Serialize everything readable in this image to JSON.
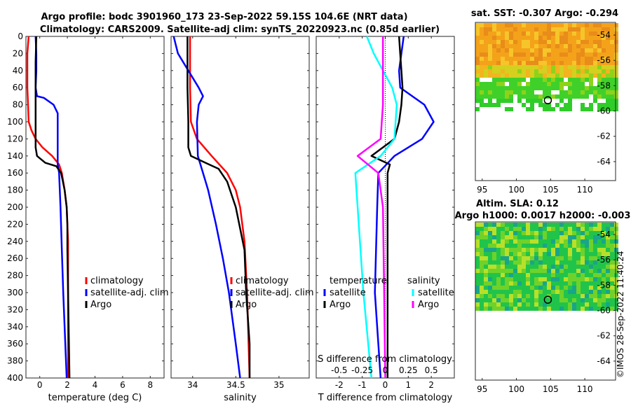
{
  "title": {
    "line1": "Argo profile: bodc 3901960_173 23-Sep-2022 59.15S 104.6E (NRT data)",
    "line2": "Climatology: CARS2009. Satellite-adj clim: synTS_20220923.nc (0.85d earlier)"
  },
  "colors": {
    "climatology": "#ff0000",
    "satellite": "#0000ff",
    "argo": "#000000",
    "salinity_sat": "#00ffff",
    "salinity_argo": "#ff00ff"
  },
  "credit": "©IMOS 28-Sep-2022 11:40:24",
  "chart_data": [
    {
      "type": "line",
      "id": "temperature",
      "xlabel": "temperature (deg C)",
      "xlim": [
        -1,
        9
      ],
      "xticks": [
        0,
        2,
        4,
        6,
        8
      ],
      "ylim": [
        400,
        0
      ],
      "yticks": [
        0,
        20,
        40,
        60,
        80,
        100,
        120,
        140,
        160,
        180,
        200,
        220,
        240,
        260,
        280,
        300,
        320,
        340,
        360,
        380,
        400
      ],
      "legend": [
        "climatology",
        "satellite-adj. clim",
        "Argo"
      ],
      "series": [
        {
          "name": "climatology",
          "color": "#ff0000",
          "depth": [
            0,
            20,
            60,
            80,
            100,
            110,
            120,
            130,
            140,
            150,
            160,
            180,
            200,
            240,
            300,
            400
          ],
          "values": [
            -0.8,
            -0.9,
            -0.9,
            -0.85,
            -0.8,
            -0.6,
            -0.3,
            0.2,
            0.9,
            1.4,
            1.6,
            1.8,
            1.95,
            2.05,
            2.05,
            2.05
          ]
        },
        {
          "name": "satellite-adj. clim",
          "color": "#0000ff",
          "depth": [
            0,
            20,
            40,
            60,
            70,
            72,
            80,
            90,
            150,
            160,
            200,
            250,
            300,
            400
          ],
          "values": [
            -0.3,
            -0.25,
            -0.25,
            -0.3,
            -0.2,
            0.3,
            1.0,
            1.3,
            1.3,
            1.4,
            1.5,
            1.6,
            1.7,
            1.95
          ]
        },
        {
          "name": "Argo",
          "color": "#000000",
          "depth": [
            0,
            30,
            60,
            100,
            130,
            140,
            148,
            152,
            160,
            180,
            200,
            220,
            250,
            300,
            350,
            400
          ],
          "values": [
            -0.25,
            -0.3,
            -0.3,
            -0.3,
            -0.3,
            -0.2,
            0.4,
            1.2,
            1.55,
            1.8,
            1.95,
            2.0,
            2.0,
            2.05,
            2.1,
            2.15
          ]
        }
      ]
    },
    {
      "type": "line",
      "id": "salinity",
      "xlabel": "salinity",
      "xlim": [
        33.75,
        35.35
      ],
      "xticks": [
        34,
        34.5,
        35
      ],
      "ylim": [
        400,
        0
      ],
      "legend": [
        "climatology",
        "satellite-adj. clim",
        "Argo"
      ],
      "series": [
        {
          "name": "climatology",
          "color": "#ff0000",
          "depth": [
            0,
            60,
            100,
            120,
            140,
            160,
            180,
            200,
            240,
            300,
            400
          ],
          "values": [
            33.97,
            33.97,
            33.98,
            34.05,
            34.22,
            34.4,
            34.5,
            34.55,
            34.6,
            34.63,
            34.66
          ]
        },
        {
          "name": "satellite-adj. clim",
          "color": "#0000ff",
          "depth": [
            0,
            20,
            40,
            60,
            70,
            80,
            100,
            140,
            160,
            180,
            220,
            260,
            300,
            360,
            400
          ],
          "values": [
            33.78,
            33.83,
            33.95,
            34.07,
            34.12,
            34.07,
            34.05,
            34.06,
            34.12,
            34.18,
            34.27,
            34.35,
            34.42,
            34.5,
            34.55
          ]
        },
        {
          "name": "Argo",
          "color": "#000000",
          "depth": [
            0,
            60,
            100,
            130,
            140,
            148,
            155,
            170,
            200,
            250,
            300,
            360,
            400
          ],
          "values": [
            33.94,
            33.94,
            33.95,
            33.95,
            33.98,
            34.15,
            34.3,
            34.4,
            34.5,
            34.6,
            34.62,
            34.66,
            34.66
          ]
        }
      ]
    },
    {
      "type": "line",
      "id": "difference",
      "xlabel": "T difference from climatology",
      "xlabel_top": "S difference from climatology",
      "xlim": [
        -3,
        3
      ],
      "xticks": [
        -2,
        -1,
        0,
        1,
        2
      ],
      "xtick_labels_top": [
        "-0.5",
        "-0.25",
        "0",
        "0.25",
        "0.5"
      ],
      "ylim": [
        400,
        0
      ],
      "legend_titles": [
        "temperature",
        "salinity"
      ],
      "legend_temperature": [
        "satellite",
        "Argo"
      ],
      "legend_salinity": [
        "satellite",
        "Argo"
      ],
      "series": [
        {
          "name": "temperature satellite",
          "color": "#0000ff",
          "depth": [
            0,
            20,
            40,
            60,
            80,
            100,
            120,
            140,
            160,
            200,
            300,
            400
          ],
          "values": [
            0.8,
            0.7,
            0.6,
            0.65,
            1.7,
            2.1,
            1.6,
            0.4,
            -0.3,
            -0.35,
            -0.45,
            -0.2
          ]
        },
        {
          "name": "temperature Argo",
          "color": "#000000",
          "depth": [
            0,
            20,
            40,
            60,
            80,
            100,
            120,
            140,
            150,
            160,
            200,
            300,
            400
          ],
          "values": [
            0.6,
            0.65,
            0.7,
            0.75,
            0.7,
            0.6,
            0.4,
            -0.6,
            0.2,
            0.1,
            0.1,
            0.1,
            0.1
          ]
        },
        {
          "name": "salinity satellite",
          "color": "#00ffff",
          "depth": [
            0,
            20,
            40,
            60,
            80,
            120,
            140,
            160,
            200,
            300,
            400
          ],
          "values": [
            -0.8,
            -0.5,
            -0.1,
            0.3,
            0.5,
            0.4,
            -0.2,
            -1.3,
            -1.2,
            -0.95,
            -0.6
          ]
        },
        {
          "name": "salinity Argo",
          "color": "#ff00ff",
          "depth": [
            0,
            40,
            80,
            120,
            140,
            160,
            200,
            300,
            400
          ],
          "values": [
            -0.1,
            -0.1,
            -0.1,
            -0.2,
            -1.2,
            -0.3,
            -0.1,
            -0.05,
            0.0
          ]
        }
      ]
    },
    {
      "type": "heatmap",
      "id": "sst-map",
      "title": "sat. SST: -0.307 Argo: -0.294",
      "xlim": [
        94,
        114.5
      ],
      "ylim": [
        -65.5,
        -53
      ],
      "xticks": [
        95,
        100,
        105,
        110
      ],
      "yticks": [
        -54,
        -56,
        -58,
        -60,
        -62,
        -64
      ],
      "profile_lon": 104.6,
      "profile_lat": -59.15
    },
    {
      "type": "heatmap",
      "id": "sla-map",
      "title_line1": "Altim. SLA: 0.12",
      "title_line2": "Argo h1000: 0.0017 h2000: -0.003",
      "xlim": [
        94,
        114.5
      ],
      "ylim": [
        -65.5,
        -53
      ],
      "xticks": [
        95,
        100,
        105,
        110
      ],
      "yticks": [
        -54,
        -56,
        -58,
        -60,
        -62,
        -64
      ],
      "profile_lon": 104.6,
      "profile_lat": -59.15
    }
  ]
}
